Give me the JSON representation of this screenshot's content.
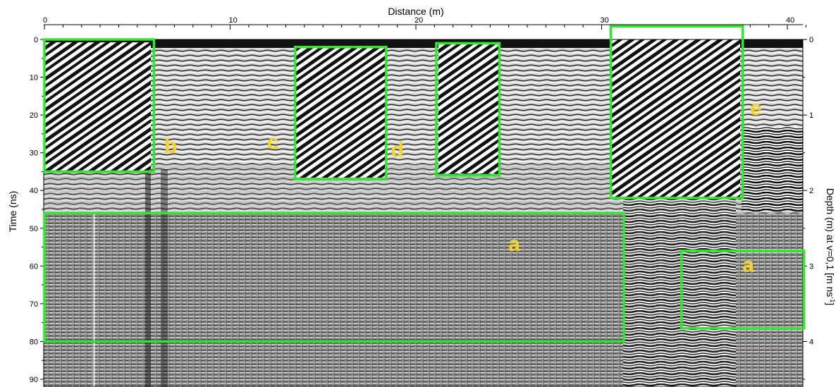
{
  "chart_data": {
    "type": "heatmap",
    "title": "",
    "xlabel": "Distance (m)",
    "ylabel": "Time (ns)",
    "ylabel_right": "Depth (m) at v=0,1 [m ns",
    "ylabel_right_sup": "-1",
    "ylabel_right_close": "]",
    "xlim": [
      0,
      41
    ],
    "ylim": [
      0,
      92
    ],
    "depth_lim": [
      0,
      4.6
    ],
    "x_ticks": [
      "0",
      "10",
      "20",
      "30",
      "40"
    ],
    "x_tick_values": [
      0,
      10,
      20,
      30,
      40
    ],
    "y_ticks": [
      "0",
      "10",
      "20",
      "30",
      "40",
      "50",
      "60",
      "70",
      "80",
      "90"
    ],
    "y_tick_values": [
      0,
      10,
      20,
      30,
      40,
      50,
      60,
      70,
      80,
      90
    ],
    "depth_ticks": [
      "0",
      "1",
      "2",
      "3",
      "4"
    ],
    "depth_tick_values": [
      0,
      1,
      2,
      3,
      4
    ],
    "box_color": "#2ee82e",
    "label_color": "#f5d327",
    "annotations": [
      {
        "label": "",
        "x": [
          0,
          5.9
        ],
        "y": [
          0,
          35
        ]
      },
      {
        "label": "b",
        "x": [
          6.8,
          6.8
        ],
        "y": [
          28,
          28
        ]
      },
      {
        "label": "c",
        "x": [
          12.3,
          12.3
        ],
        "y": [
          27,
          27
        ]
      },
      {
        "label": "",
        "x": [
          13.5,
          18.4
        ],
        "y": [
          2,
          37
        ]
      },
      {
        "label": "d",
        "x": [
          19.0,
          19.0
        ],
        "y": [
          29,
          29
        ]
      },
      {
        "label": "",
        "x": [
          21.1,
          24.5
        ],
        "y": [
          1,
          36
        ]
      },
      {
        "label": "e",
        "x": [
          38.3,
          38.3
        ],
        "y": [
          18,
          18
        ]
      },
      {
        "label": "",
        "x": [
          30.5,
          37.6
        ],
        "y": [
          -3.5,
          42
        ]
      },
      {
        "label": "a",
        "x": [
          25.3,
          25.3
        ],
        "y": [
          54,
          54
        ]
      },
      {
        "label": "",
        "x": [
          0,
          31.2
        ],
        "y": [
          46,
          80
        ]
      },
      {
        "label": "a",
        "x": [
          37.9,
          37.9
        ],
        "y": [
          59.5,
          59.5
        ]
      },
      {
        "label": "",
        "x": [
          34.3,
          40.9
        ],
        "y": [
          56,
          76.5
        ]
      }
    ]
  }
}
